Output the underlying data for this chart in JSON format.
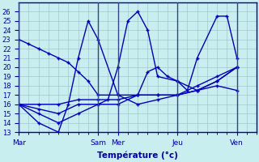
{
  "bg_color": "#c8eef0",
  "line_color": "#0000bb",
  "marker": "+",
  "xlabel": "Température (°c)",
  "ylim": [
    13,
    27
  ],
  "xlim_min": 0,
  "xlim_max": 24,
  "yticks": [
    13,
    14,
    15,
    16,
    17,
    18,
    19,
    20,
    21,
    22,
    23,
    24,
    25,
    26
  ],
  "day_labels": [
    "Mar",
    "Sam",
    "Mer",
    "Jeu",
    "Ven"
  ],
  "day_tick_x": [
    0,
    8,
    10,
    16,
    22
  ],
  "grid_color": "#a0c8cc",
  "tick_color": "#0000aa",
  "series": [
    {
      "x": [
        0,
        1,
        2,
        3,
        4,
        5,
        6,
        7,
        8,
        10,
        12,
        14,
        16,
        18,
        20,
        22
      ],
      "y": [
        23,
        22.5,
        22,
        21.5,
        21,
        20.5,
        19.5,
        18.5,
        17,
        17,
        17,
        17,
        17,
        18,
        19,
        20
      ]
    },
    {
      "x": [
        0,
        2,
        4,
        6,
        8,
        10,
        12,
        14,
        16,
        18,
        20,
        22
      ],
      "y": [
        16,
        16,
        16,
        16.5,
        16.5,
        16.5,
        17,
        17,
        17,
        17.5,
        18.5,
        20
      ]
    },
    {
      "x": [
        0,
        2,
        4,
        5,
        6,
        7,
        8,
        10,
        12,
        14,
        16,
        18,
        20,
        22
      ],
      "y": [
        16,
        14,
        13,
        16,
        21,
        25,
        23,
        17,
        16,
        16.5,
        17,
        17.5,
        18.5,
        20
      ]
    },
    {
      "x": [
        0,
        2,
        4,
        6,
        8,
        10,
        12,
        13,
        14,
        15,
        16,
        18,
        20,
        22
      ],
      "y": [
        16,
        15.5,
        15,
        16,
        16,
        16,
        17,
        19.5,
        20,
        19,
        18.5,
        17.5,
        18,
        17.5
      ]
    },
    {
      "x": [
        0,
        2,
        4,
        6,
        8,
        9,
        10,
        11,
        12,
        13,
        14,
        16,
        17,
        18,
        20,
        21,
        22
      ],
      "y": [
        16,
        15,
        14,
        15,
        16,
        16.5,
        20,
        25,
        26,
        24,
        19,
        18.5,
        17.5,
        21,
        25.5,
        25.5,
        21
      ]
    }
  ]
}
